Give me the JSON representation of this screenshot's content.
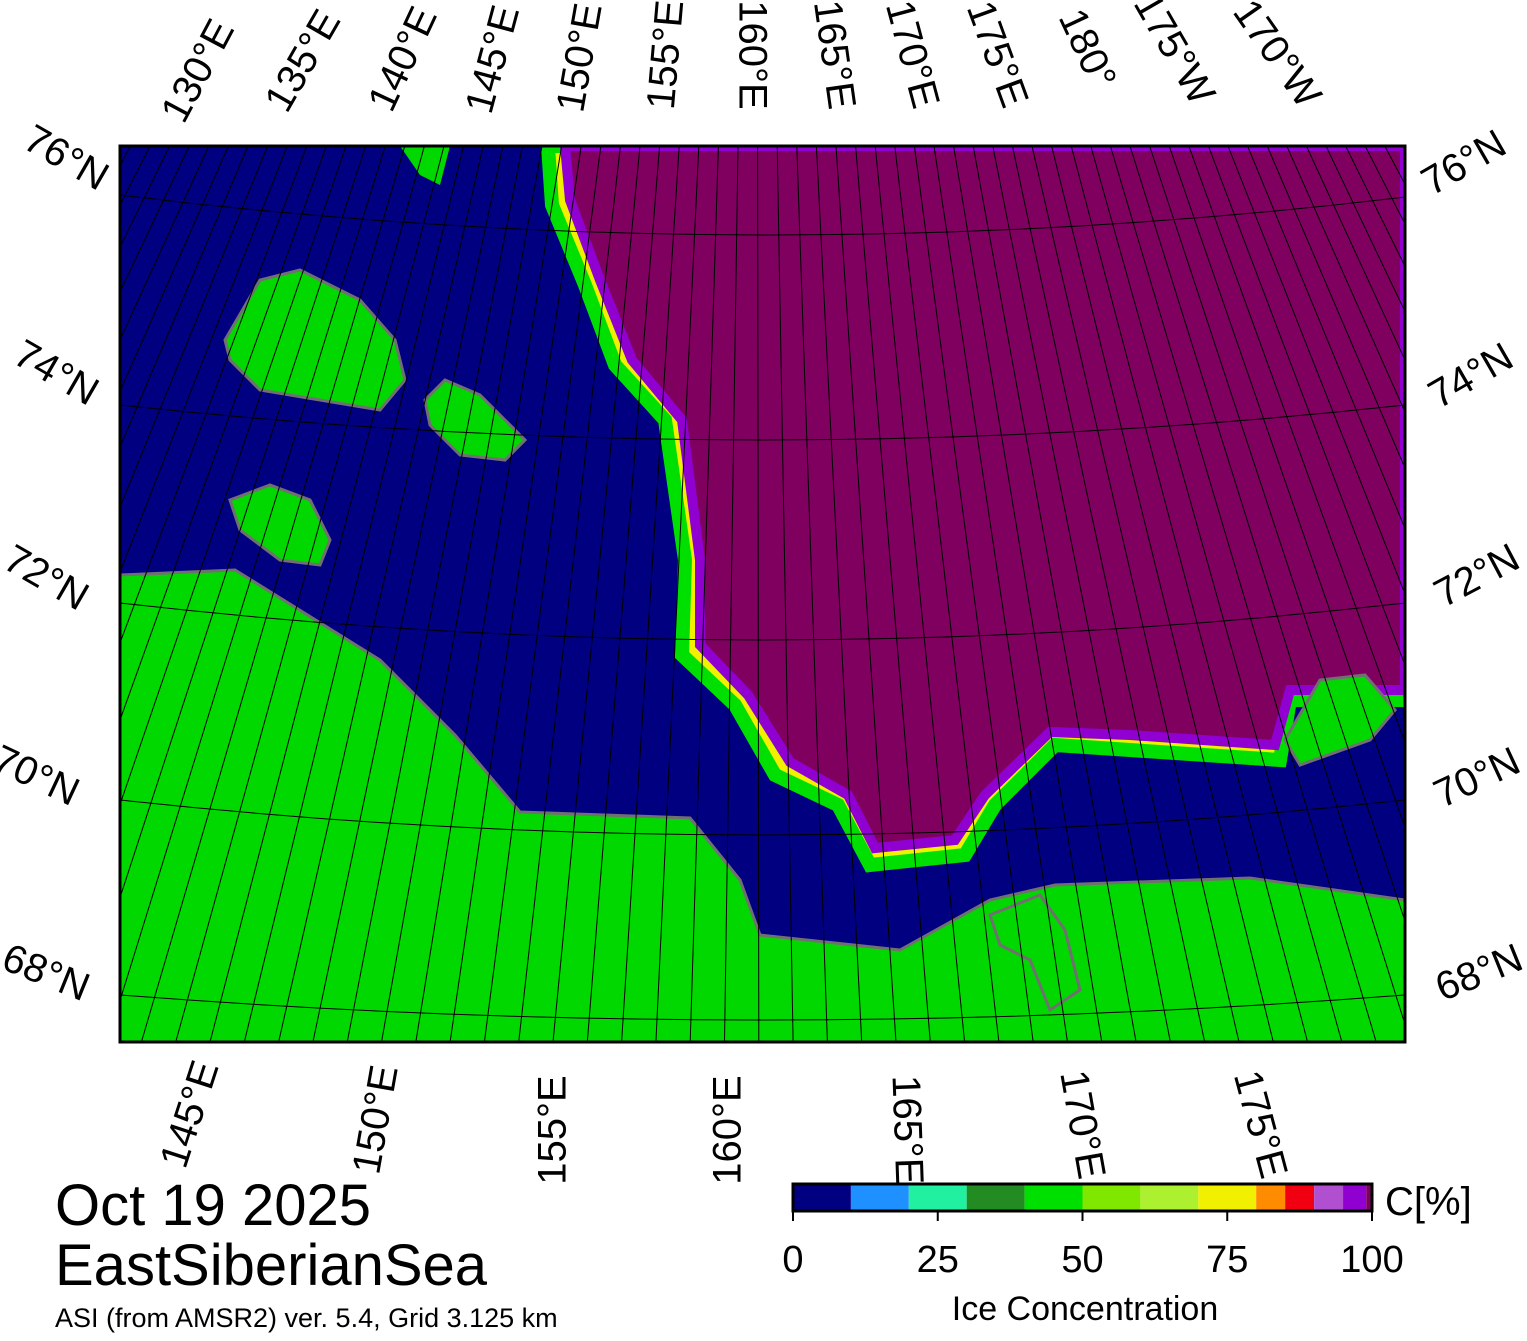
{
  "map": {
    "top_labels": [
      "130°E",
      "135°E",
      "140°E",
      "145°E",
      "150°E",
      "155°E",
      "160°E",
      "165°E",
      "170°E",
      "175°E",
      "180°",
      "175°W",
      "170°W"
    ],
    "bottom_labels": [
      "145°E",
      "150°E",
      "155°E",
      "160°E",
      "165°E",
      "170°E",
      "175°E"
    ],
    "left_labels": [
      "76°N",
      "74°N",
      "72°N",
      "70°N",
      "68°N"
    ],
    "right_labels": [
      "76°N",
      "74°N",
      "72°N",
      "70°N",
      "68°N"
    ],
    "date": "Oct 19 2025",
    "region": "EastSiberianSea",
    "source": "ASI (from AMSR2) ver. 5.4,  Grid 3.125 km"
  },
  "colorbar": {
    "title": "Ice Concentration",
    "unit": "C[%]",
    "lim": [
      0,
      100
    ],
    "ticks": [
      0,
      25,
      50,
      75,
      100
    ],
    "bounds": [
      0,
      10,
      20,
      30,
      40,
      50,
      60,
      70,
      80,
      85,
      90,
      95,
      99,
      100
    ],
    "colors": [
      "#000080",
      "#1e90ff",
      "#20f0a0",
      "#228b22",
      "#00e000",
      "#80e800",
      "#adf030",
      "#f0f000",
      "#ff8c00",
      "#f00010",
      "#b050d0",
      "#9000d0",
      "#800060"
    ]
  }
}
